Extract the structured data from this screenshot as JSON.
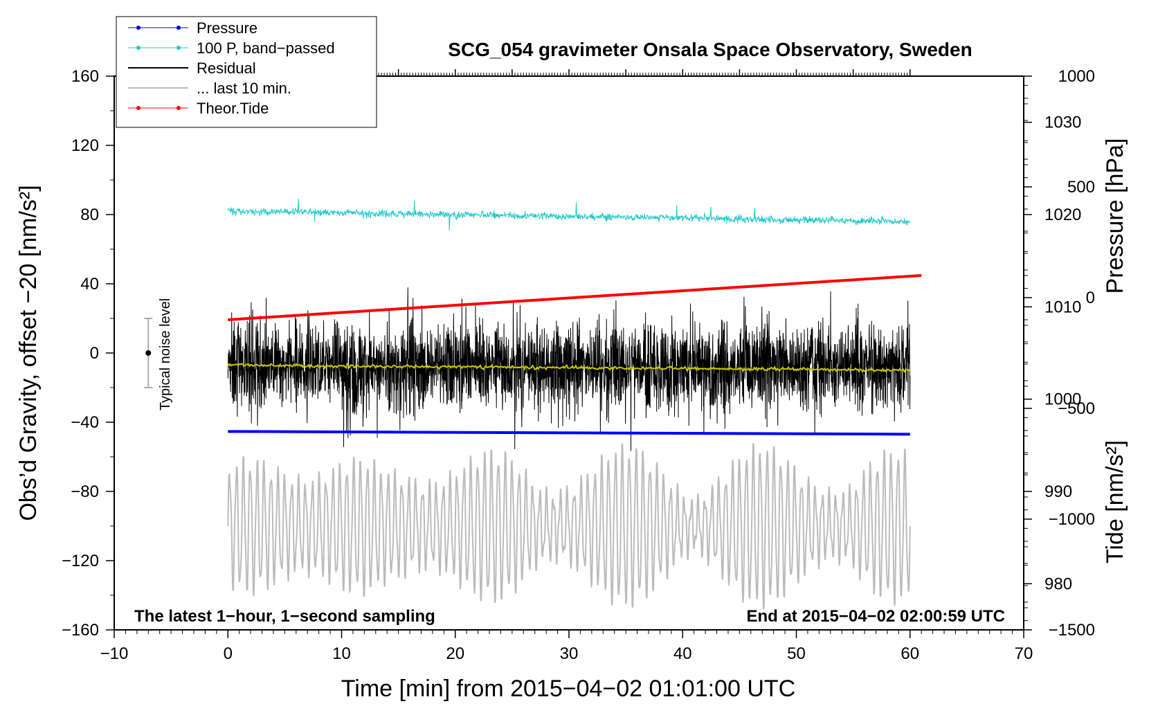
{
  "chart_data": {
    "type": "line",
    "title": "SCG_054 gravimeter Onsala Space Observatory, Sweden",
    "xlabel": "Time [min] from 2015−04−02 01:01:00 UTC",
    "ylabel_left": "Obs’d Gravity, offset −20 [nm/s²]",
    "ylabel_pressure": "Pressure [hPa]",
    "ylabel_tide": "Tide [nm/s²]",
    "xlim": [
      -10,
      70
    ],
    "ylim": [
      -160,
      160
    ],
    "pressure_lim": [
      975,
      1035
    ],
    "tide_lim": [
      -1500,
      1000
    ],
    "x_ticks": [
      -10,
      0,
      10,
      20,
      30,
      40,
      50,
      60,
      70
    ],
    "x_tick_labels": [
      "−10",
      "0",
      "10",
      "20",
      "30",
      "40",
      "50",
      "60",
      "70"
    ],
    "y_ticks": [
      -160,
      -120,
      -80,
      -40,
      0,
      40,
      80,
      120,
      160
    ],
    "y_tick_labels": [
      "−160",
      "−120",
      "−80",
      "−40",
      "0",
      "40",
      "80",
      "120",
      "160"
    ],
    "pressure_ticks": [
      980,
      990,
      1000,
      1010,
      1020,
      1030
    ],
    "pressure_tick_labels": [
      "980",
      "990",
      "1000",
      "1010",
      "1020",
      "1030"
    ],
    "tide_ticks": [
      -1500,
      -1000,
      -500,
      0,
      500,
      1000
    ],
    "tide_tick_labels": [
      "−1500",
      "−1000",
      "−500",
      "0",
      "500",
      "1000"
    ],
    "annotations": {
      "bottom_left": "The latest 1−hour, 1−second sampling",
      "bottom_right": "End at 2015−04−02 02:00:59 UTC",
      "noise_label": "Typical noise level"
    },
    "noise_bar": {
      "x": -7,
      "center": 0,
      "low": -20,
      "high": 20
    },
    "legend": [
      {
        "label": "Pressure",
        "color": "#0000ff",
        "marker": "dot",
        "width": 1
      },
      {
        "label": "100 P, band−passed",
        "color": "#20c8c8",
        "marker": "dot",
        "width": 1
      },
      {
        "label": "Residual",
        "color": "#000000",
        "marker": "none",
        "width": 2
      },
      {
        "label": "... last 10 min.",
        "color": "#bbbbbb",
        "marker": "none",
        "width": 2
      },
      {
        "label": "Theor.Tide",
        "color": "#ff0000",
        "marker": "dot",
        "width": 1
      }
    ],
    "series": [
      {
        "name": "Pressure",
        "axis": "pressure",
        "color": "#0000ff",
        "x": [
          0,
          60
        ],
        "values": [
          996.5,
          996.2
        ]
      },
      {
        "name": "100 P, band−passed",
        "axis": "left",
        "color": "#20c8c8",
        "x_range": [
          0,
          60
        ],
        "mean_start": 82,
        "mean_end": 76,
        "amplitude": 5
      },
      {
        "name": "Residual",
        "axis": "left",
        "color": "#000000",
        "x_range": [
          0,
          60
        ],
        "typical_range": [
          -35,
          30
        ],
        "max": 55,
        "min": -73
      },
      {
        "name": "Residual smoothed",
        "axis": "left",
        "color": "#c8c800",
        "x": [
          0,
          60
        ],
        "values": [
          -7,
          -10
        ]
      },
      {
        "name": "... last 10 min.",
        "axis": "left",
        "color": "#bbbbbb",
        "x_range": [
          0,
          60
        ],
        "center": -100,
        "min": -160,
        "max": -47
      },
      {
        "name": "Theor.Tide",
        "axis": "tide",
        "color": "#ff0000",
        "x": [
          0,
          61
        ],
        "values": [
          -100,
          100
        ]
      }
    ]
  }
}
